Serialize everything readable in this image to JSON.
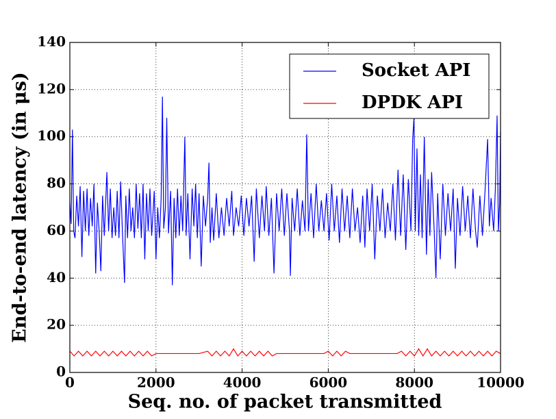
{
  "chart_data": {
    "type": "line",
    "xlabel": "Seq. no. of packet transmitted",
    "ylabel": "End-to-end latency (in μs)",
    "xlim": [
      0,
      10000
    ],
    "xticks": [
      0,
      2000,
      4000,
      6000,
      8000,
      10000
    ],
    "ylim": [
      0,
      140
    ],
    "yticks": [
      0,
      20,
      40,
      60,
      80,
      100,
      120,
      140
    ],
    "grid": true,
    "legend": "upper right",
    "series": [
      {
        "name": "Socket API",
        "color": "#0000ff",
        "x": [
          0,
          30,
          60,
          90,
          120,
          160,
          200,
          240,
          280,
          320,
          360,
          400,
          440,
          480,
          520,
          560,
          600,
          640,
          680,
          720,
          760,
          800,
          860,
          900,
          940,
          980,
          1020,
          1060,
          1100,
          1140,
          1180,
          1220,
          1270,
          1300,
          1340,
          1380,
          1420,
          1460,
          1500,
          1540,
          1580,
          1620,
          1660,
          1700,
          1740,
          1780,
          1820,
          1860,
          1900,
          1960,
          2000,
          2040,
          2080,
          2120,
          2150,
          2180,
          2220,
          2250,
          2290,
          2340,
          2380,
          2420,
          2460,
          2500,
          2540,
          2580,
          2620,
          2670,
          2700,
          2740,
          2790,
          2840,
          2880,
          2920,
          2960,
          3000,
          3050,
          3100,
          3150,
          3200,
          3230,
          3260,
          3300,
          3340,
          3400,
          3460,
          3520,
          3580,
          3640,
          3700,
          3760,
          3800,
          3860,
          3920,
          3980,
          4040,
          4100,
          4160,
          4220,
          4280,
          4330,
          4400,
          4460,
          4520,
          4560,
          4620,
          4680,
          4740,
          4800,
          4860,
          4920,
          4980,
          5040,
          5100,
          5120,
          5160,
          5220,
          5280,
          5340,
          5400,
          5460,
          5500,
          5540,
          5600,
          5660,
          5720,
          5780,
          5840,
          5900,
          5960,
          6020,
          6080,
          6140,
          6200,
          6260,
          6320,
          6380,
          6440,
          6500,
          6560,
          6620,
          6680,
          6740,
          6800,
          6850,
          6900,
          6960,
          7020,
          7080,
          7140,
          7200,
          7260,
          7320,
          7380,
          7440,
          7500,
          7560,
          7620,
          7680,
          7740,
          7800,
          7860,
          7920,
          7960,
          7990,
          8020,
          8060,
          8100,
          8140,
          8180,
          8230,
          8280,
          8320,
          8360,
          8400,
          8460,
          8500,
          8540,
          8600,
          8660,
          8720,
          8780,
          8840,
          8900,
          8950,
          9000,
          9060,
          9120,
          9180,
          9240,
          9300,
          9360,
          9420,
          9460,
          9520,
          9580,
          9640,
          9700,
          9740,
          9780,
          9840,
          9880,
          9920,
          9950,
          9980,
          10000
        ],
        "values": [
          72,
          63,
          103,
          60,
          57,
          75,
          62,
          79,
          49,
          77,
          60,
          78,
          58,
          74,
          62,
          80,
          42,
          72,
          60,
          43,
          75,
          58,
          85,
          60,
          78,
          57,
          70,
          58,
          77,
          57,
          81,
          60,
          38,
          75,
          57,
          78,
          60,
          70,
          57,
          80,
          61,
          76,
          57,
          80,
          48,
          76,
          60,
          78,
          58,
          77,
          48,
          70,
          57,
          74,
          117,
          61,
          70,
          108,
          59,
          77,
          37,
          74,
          57,
          78,
          58,
          75,
          60,
          100,
          58,
          76,
          48,
          78,
          62,
          80,
          57,
          76,
          45,
          75,
          62,
          74,
          89,
          55,
          70,
          56,
          76,
          57,
          70,
          58,
          74,
          62,
          77,
          58,
          70,
          62,
          75,
          58,
          74,
          62,
          75,
          47,
          78,
          57,
          75,
          60,
          79,
          58,
          74,
          42,
          76,
          60,
          78,
          58,
          76,
          60,
          41,
          74,
          60,
          78,
          58,
          73,
          60,
          101,
          60,
          76,
          57,
          80,
          60,
          73,
          60,
          76,
          56,
          80,
          60,
          75,
          55,
          78,
          60,
          75,
          57,
          78,
          60,
          70,
          55,
          75,
          53,
          78,
          60,
          80,
          48,
          75,
          60,
          78,
          57,
          72,
          60,
          80,
          56,
          86,
          58,
          84,
          52,
          82,
          60,
          99,
          108,
          60,
          95,
          58,
          84,
          57,
          100,
          50,
          82,
          58,
          85,
          60,
          40,
          76,
          48,
          80,
          58,
          76,
          60,
          78,
          44,
          74,
          58,
          79,
          60,
          75,
          57,
          78,
          60,
          53,
          75,
          58,
          77,
          99,
          62,
          74,
          60,
          78,
          109,
          60,
          72,
          102
        ]
      },
      {
        "name": "DPDK API",
        "color": "#ff0000",
        "x": [
          0,
          100,
          200,
          300,
          400,
          500,
          600,
          700,
          800,
          900,
          1000,
          1100,
          1200,
          1300,
          1400,
          1500,
          1600,
          1700,
          1800,
          1900,
          2000,
          3000,
          3200,
          3300,
          3400,
          3500,
          3600,
          3700,
          3800,
          3900,
          4000,
          4100,
          4200,
          4300,
          4400,
          4500,
          4600,
          4700,
          4800,
          5900,
          6000,
          6100,
          6200,
          6300,
          6400,
          6500,
          7600,
          7700,
          7800,
          7900,
          8000,
          8100,
          8200,
          8300,
          8400,
          8500,
          8600,
          8700,
          8800,
          8900,
          9000,
          9100,
          9200,
          9300,
          9400,
          9500,
          9600,
          9700,
          9800,
          9900,
          10000
        ],
        "values": [
          9,
          7,
          9,
          7,
          9,
          7,
          9,
          7,
          9,
          7,
          9,
          7,
          9,
          7,
          9,
          7,
          9,
          7,
          9,
          7,
          8,
          8,
          9,
          7,
          9,
          7,
          9,
          7,
          10,
          7,
          9,
          7,
          9,
          7,
          9,
          7,
          9,
          7,
          8,
          8,
          9,
          7,
          9,
          7,
          9,
          8,
          8,
          9,
          7,
          9,
          7,
          10,
          7,
          10,
          7,
          9,
          7,
          9,
          7,
          9,
          7,
          9,
          7,
          9,
          7,
          9,
          7,
          9,
          7,
          9,
          8
        ]
      }
    ]
  }
}
